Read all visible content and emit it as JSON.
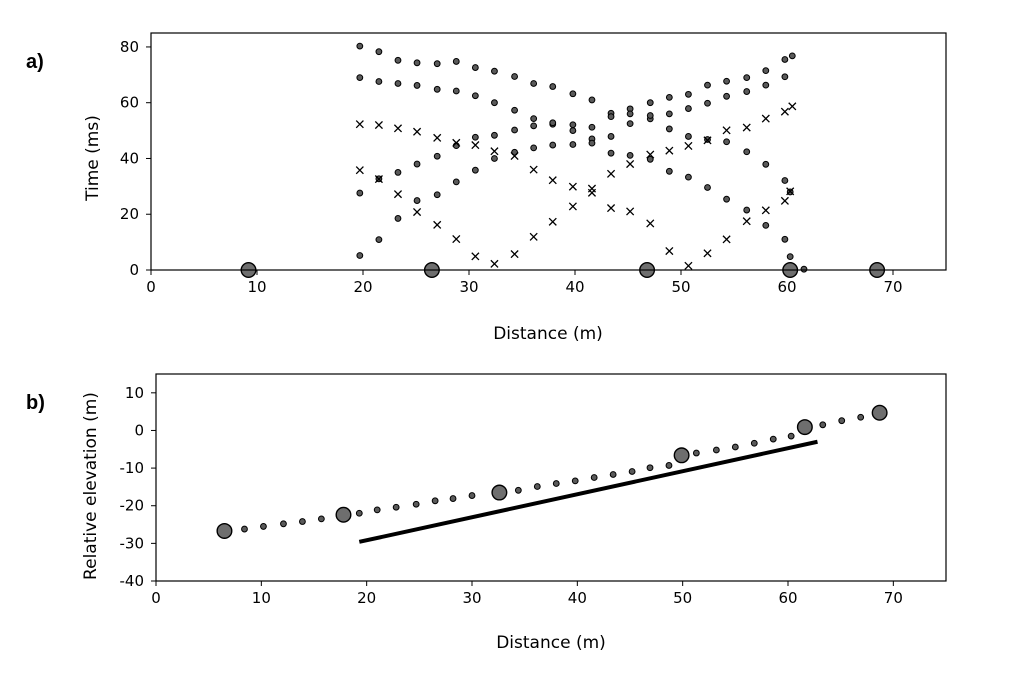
{
  "chart_data": [
    {
      "type": "scatter",
      "panel_label": "a)",
      "xlabel": "Distance (m)",
      "ylabel": "Time (ms)",
      "xlim": [
        0,
        75
      ],
      "ylim": [
        0,
        85
      ],
      "xticks": [
        0,
        10,
        20,
        30,
        40,
        50,
        60,
        70
      ],
      "yticks": [
        0,
        20,
        40,
        60,
        80
      ],
      "grid": false,
      "legend": "none",
      "series": [
        {
          "marker": "dot",
          "points": [
            [
              19.7,
              80.3
            ],
            [
              21.5,
              78.3
            ],
            [
              23.3,
              75.2
            ],
            [
              25.1,
              74.3
            ],
            [
              27.0,
              74.0
            ],
            [
              28.8,
              74.8
            ],
            [
              30.6,
              72.6
            ],
            [
              32.4,
              71.3
            ],
            [
              34.3,
              69.4
            ],
            [
              36.1,
              66.9
            ],
            [
              37.9,
              65.8
            ],
            [
              39.8,
              63.2
            ],
            [
              41.6,
              61.0
            ],
            [
              43.4,
              56.2
            ],
            [
              45.2,
              57.8
            ],
            [
              47.1,
              60.0
            ],
            [
              48.9,
              61.9
            ],
            [
              50.7,
              63.0
            ],
            [
              52.5,
              66.3
            ],
            [
              54.3,
              67.7
            ],
            [
              56.2,
              69.0
            ],
            [
              58.0,
              71.5
            ],
            [
              59.8,
              75.5
            ],
            [
              60.5,
              76.8
            ],
            [
              19.7,
              69.0
            ],
            [
              21.5,
              67.6
            ],
            [
              23.3,
              66.9
            ],
            [
              25.1,
              66.2
            ],
            [
              27.0,
              64.8
            ],
            [
              28.8,
              64.2
            ],
            [
              30.6,
              62.5
            ],
            [
              32.4,
              60.0
            ],
            [
              34.3,
              57.3
            ],
            [
              36.1,
              54.3
            ],
            [
              37.9,
              52.3
            ],
            [
              39.8,
              50.0
            ],
            [
              41.6,
              47.0
            ],
            [
              43.4,
              47.9
            ],
            [
              45.2,
              52.5
            ],
            [
              47.1,
              54.2
            ],
            [
              48.9,
              56.0
            ],
            [
              50.7,
              57.9
            ],
            [
              52.5,
              59.8
            ],
            [
              54.3,
              62.3
            ],
            [
              56.2,
              64.0
            ],
            [
              58.0,
              66.3
            ],
            [
              59.8,
              69.3
            ],
            [
              19.7,
              27.6
            ],
            [
              21.5,
              32.7
            ],
            [
              23.3,
              35.0
            ],
            [
              25.1,
              38.0
            ],
            [
              27.0,
              40.8
            ],
            [
              28.8,
              44.6
            ],
            [
              30.6,
              47.6
            ],
            [
              32.4,
              48.3
            ],
            [
              34.3,
              50.2
            ],
            [
              36.1,
              51.7
            ],
            [
              37.9,
              52.8
            ],
            [
              39.8,
              52.1
            ],
            [
              41.6,
              51.2
            ],
            [
              43.4,
              55.0
            ],
            [
              45.2,
              56.0
            ],
            [
              47.1,
              55.4
            ],
            [
              48.9,
              50.6
            ],
            [
              50.7,
              47.9
            ],
            [
              52.5,
              46.8
            ],
            [
              54.3,
              46.0
            ],
            [
              56.2,
              42.4
            ],
            [
              58.0,
              37.9
            ],
            [
              59.8,
              32.1
            ],
            [
              60.3,
              28.0
            ],
            [
              19.7,
              5.2
            ],
            [
              21.5,
              10.9
            ],
            [
              23.3,
              18.5
            ],
            [
              25.1,
              24.9
            ],
            [
              27.0,
              27.0
            ],
            [
              28.8,
              31.6
            ],
            [
              30.6,
              35.8
            ],
            [
              32.4,
              40.0
            ],
            [
              34.3,
              42.2
            ],
            [
              36.1,
              43.8
            ],
            [
              37.9,
              44.8
            ],
            [
              39.8,
              45.0
            ],
            [
              41.6,
              45.5
            ],
            [
              43.4,
              41.9
            ],
            [
              45.2,
              41.1
            ],
            [
              47.1,
              39.7
            ],
            [
              48.9,
              35.4
            ],
            [
              50.7,
              33.3
            ],
            [
              52.5,
              29.6
            ],
            [
              54.3,
              25.4
            ],
            [
              56.2,
              21.5
            ],
            [
              58.0,
              16.0
            ],
            [
              59.8,
              11.0
            ],
            [
              60.3,
              4.8
            ],
            [
              61.6,
              0.3
            ]
          ]
        },
        {
          "marker": "cross",
          "points": [
            [
              19.7,
              52.3
            ],
            [
              21.5,
              52.0
            ],
            [
              23.3,
              50.8
            ],
            [
              25.1,
              49.6
            ],
            [
              27.0,
              47.4
            ],
            [
              28.8,
              45.6
            ],
            [
              30.6,
              44.8
            ],
            [
              32.4,
              42.6
            ],
            [
              34.3,
              40.9
            ],
            [
              36.1,
              36.0
            ],
            [
              37.9,
              32.2
            ],
            [
              39.8,
              29.9
            ],
            [
              41.6,
              29.2
            ],
            [
              43.4,
              34.5
            ],
            [
              45.2,
              38.0
            ],
            [
              47.1,
              41.4
            ],
            [
              48.9,
              42.8
            ],
            [
              50.7,
              44.5
            ],
            [
              52.5,
              46.5
            ],
            [
              54.3,
              50.1
            ],
            [
              56.2,
              51.1
            ],
            [
              58.0,
              54.3
            ],
            [
              59.8,
              56.8
            ],
            [
              60.5,
              58.7
            ],
            [
              19.7,
              35.8
            ],
            [
              21.5,
              32.6
            ],
            [
              23.3,
              27.2
            ],
            [
              25.1,
              20.8
            ],
            [
              27.0,
              16.2
            ],
            [
              28.8,
              11.1
            ],
            [
              30.6,
              4.9
            ],
            [
              32.4,
              2.2
            ],
            [
              34.3,
              5.7
            ],
            [
              36.1,
              11.9
            ],
            [
              37.9,
              17.3
            ],
            [
              39.8,
              22.8
            ],
            [
              41.6,
              27.7
            ],
            [
              43.4,
              22.2
            ],
            [
              45.2,
              21.0
            ],
            [
              47.1,
              16.7
            ],
            [
              48.9,
              6.8
            ],
            [
              50.7,
              1.5
            ],
            [
              52.5,
              6.0
            ],
            [
              54.3,
              11.0
            ],
            [
              56.2,
              17.5
            ],
            [
              58.0,
              21.4
            ],
            [
              59.8,
              24.8
            ],
            [
              60.3,
              28.2
            ]
          ]
        },
        {
          "marker": "big-circle",
          "points": [
            [
              9.2,
              0
            ],
            [
              26.5,
              0
            ],
            [
              46.8,
              0
            ],
            [
              60.3,
              0
            ],
            [
              68.5,
              0
            ]
          ]
        }
      ]
    },
    {
      "type": "scatter",
      "panel_label": "b)",
      "xlabel": "Distance (m)",
      "ylabel": "Relative elevation (m)",
      "xlim": [
        0,
        75
      ],
      "ylim": [
        -40,
        15
      ],
      "xticks": [
        0,
        10,
        20,
        30,
        40,
        50,
        60,
        70
      ],
      "yticks": [
        -40,
        -30,
        -20,
        -10,
        0,
        10
      ],
      "grid": false,
      "legend": "none",
      "series": [
        {
          "marker": "dot",
          "points": [
            [
              8.4,
              -26.2
            ],
            [
              10.2,
              -25.5
            ],
            [
              12.1,
              -24.8
            ],
            [
              13.9,
              -24.2
            ],
            [
              15.7,
              -23.5
            ],
            [
              19.3,
              -22.0
            ],
            [
              21.0,
              -21.1
            ],
            [
              22.8,
              -20.4
            ],
            [
              24.7,
              -19.6
            ],
            [
              26.5,
              -18.7
            ],
            [
              28.2,
              -18.1
            ],
            [
              30.0,
              -17.3
            ],
            [
              34.4,
              -15.9
            ],
            [
              36.2,
              -14.9
            ],
            [
              38.0,
              -14.1
            ],
            [
              39.8,
              -13.4
            ],
            [
              41.6,
              -12.5
            ],
            [
              43.4,
              -11.7
            ],
            [
              45.2,
              -10.9
            ],
            [
              46.9,
              -9.9
            ],
            [
              48.7,
              -9.3
            ],
            [
              51.3,
              -6.0
            ],
            [
              53.2,
              -5.2
            ],
            [
              55.0,
              -4.4
            ],
            [
              56.8,
              -3.4
            ],
            [
              58.6,
              -2.3
            ],
            [
              60.3,
              -1.5
            ],
            [
              63.3,
              1.5
            ],
            [
              65.1,
              2.6
            ],
            [
              66.9,
              3.5
            ]
          ]
        },
        {
          "marker": "big-circle",
          "points": [
            [
              6.5,
              -26.7
            ],
            [
              17.8,
              -22.4
            ],
            [
              32.6,
              -16.5
            ],
            [
              49.9,
              -6.6
            ],
            [
              61.6,
              0.9
            ],
            [
              68.7,
              4.7
            ]
          ]
        },
        {
          "marker": "line",
          "points": [
            [
              19.3,
              -29.6
            ],
            [
              62.8,
              -3.0
            ]
          ]
        }
      ]
    }
  ]
}
